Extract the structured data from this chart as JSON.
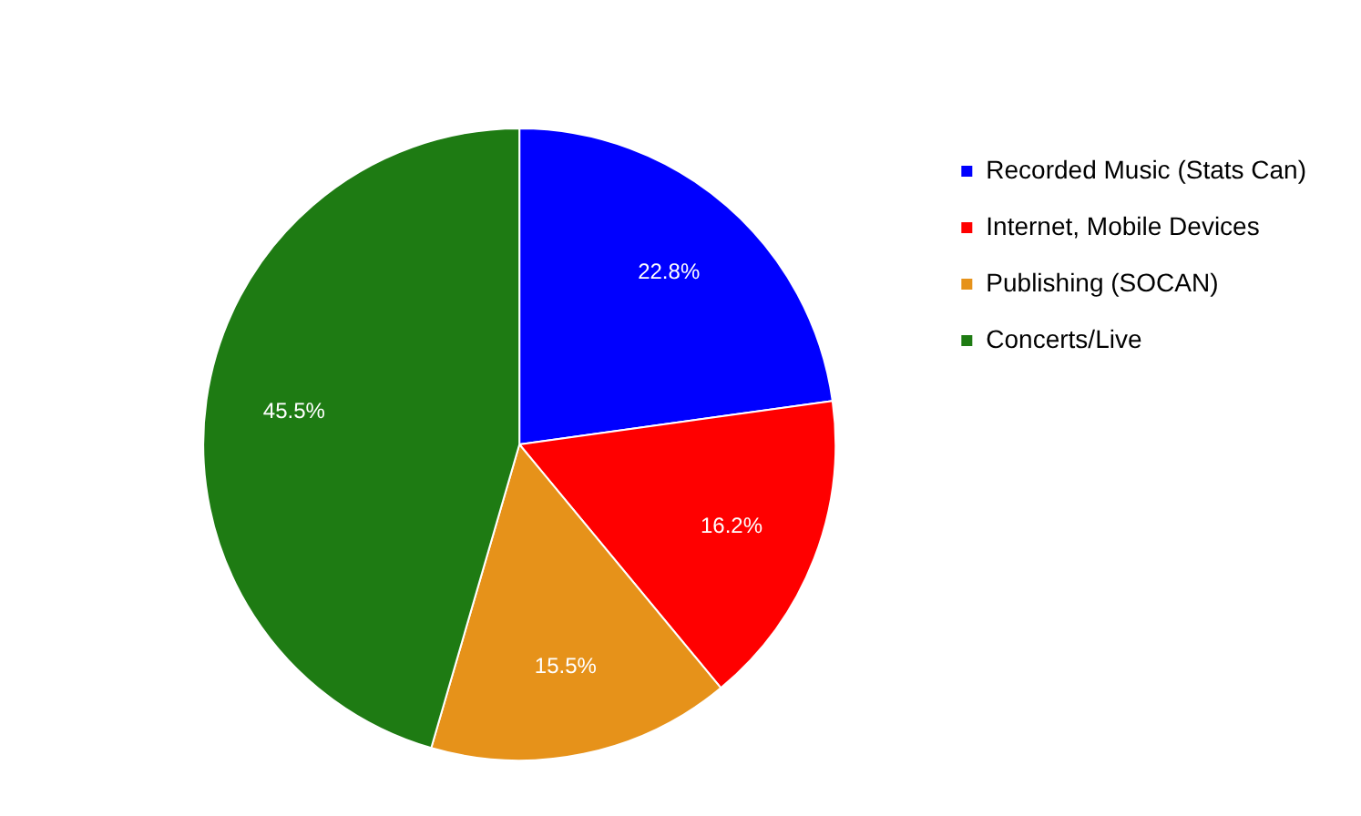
{
  "chart_data": {
    "type": "pie",
    "categories": [
      "Recorded Music (Stats Can)",
      "Internet, Mobile Devices",
      "Publishing (SOCAN)",
      "Concerts/Live"
    ],
    "values": [
      22.8,
      16.2,
      15.5,
      45.5
    ],
    "value_labels": [
      "22.8%",
      "16.2%",
      "15.5%",
      "45.5%"
    ],
    "colors": [
      "#0000ff",
      "#ff0000",
      "#e6921a",
      "#1e7b13"
    ],
    "legend": "right"
  }
}
